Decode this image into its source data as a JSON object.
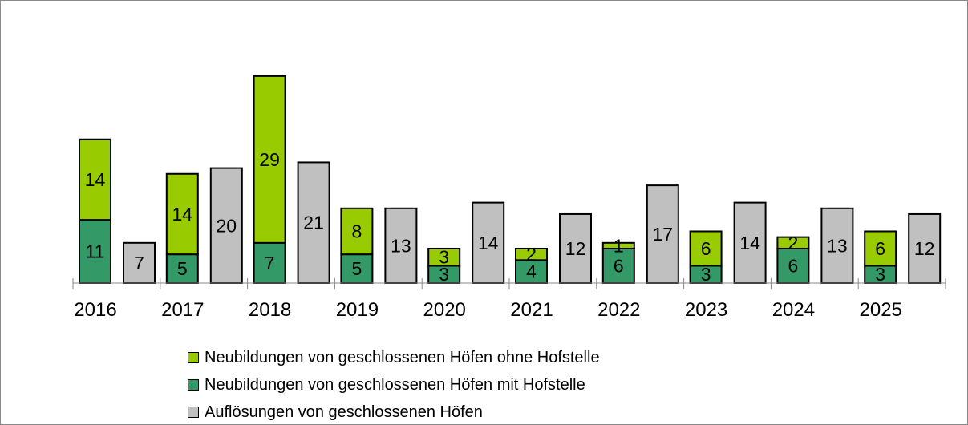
{
  "chart_data": {
    "type": "bar",
    "stacked_and_grouped": true,
    "categories": [
      "2016",
      "2017",
      "2018",
      "2019",
      "2020",
      "2021",
      "2022",
      "2023",
      "2024",
      "2025"
    ],
    "series": [
      {
        "name": "Neubildungen von geschlossenen Höfen ohne Hofstelle",
        "color": "#99cc00",
        "stack": "neubildungen",
        "values": [
          14,
          14,
          29,
          8,
          3,
          2,
          1,
          6,
          2,
          6
        ]
      },
      {
        "name": "Neubildungen von geschlossenen Höfen mit Hofstelle",
        "color": "#339966",
        "stack": "neubildungen",
        "values": [
          11,
          5,
          7,
          5,
          3,
          4,
          6,
          3,
          6,
          3
        ]
      },
      {
        "name": "Auflösungen von geschlossenen Höfen",
        "color": "#c0c0c0",
        "stack": "aufloesungen",
        "values": [
          7,
          20,
          21,
          13,
          14,
          12,
          17,
          14,
          13,
          12
        ]
      }
    ],
    "data_labels": true,
    "grid": false,
    "legend_position": "bottom",
    "ylim": [
      0,
      48
    ]
  }
}
